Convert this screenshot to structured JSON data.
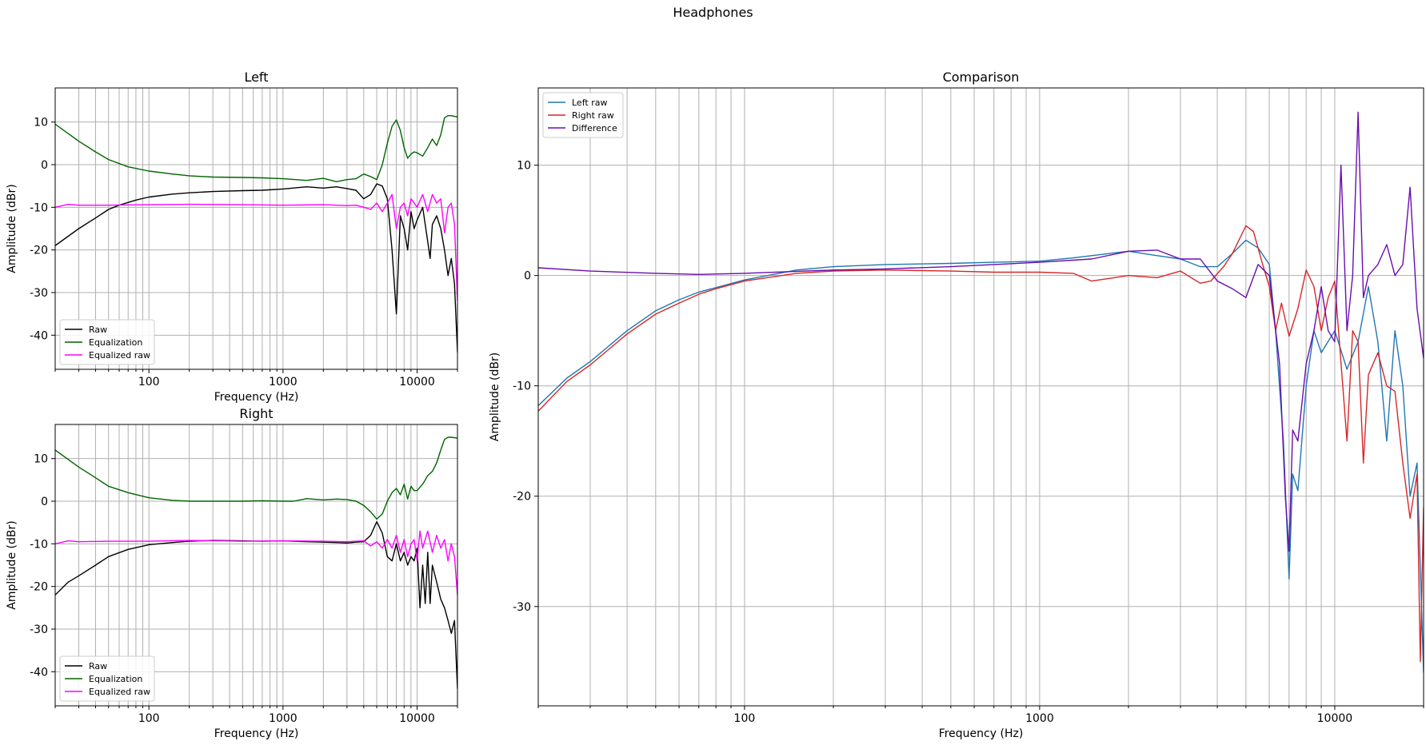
{
  "figure": {
    "title": "Headphones"
  },
  "colors": {
    "raw": "#000000",
    "equalization": "#006400",
    "equalized_raw": "#ff00ff",
    "left_raw": "#1f77b4",
    "right_raw": "#d62728",
    "difference": "#6a0dad",
    "grid": "#b0b0b0"
  },
  "chart_data": [
    {
      "id": "left",
      "type": "line",
      "title": "Left",
      "xlabel": "Frequency (Hz)",
      "ylabel": "Amplitude (dBr)",
      "xscale": "log",
      "xlim": [
        20,
        20000
      ],
      "ylim": [
        -48,
        18
      ],
      "xticks": [
        100,
        1000,
        10000
      ],
      "yticks": [
        -40,
        -30,
        -20,
        -10,
        0,
        10
      ],
      "grid": true,
      "legend": "lower-left",
      "series": [
        {
          "name": "Raw",
          "color": "#000000",
          "x": [
            20,
            30,
            40,
            50,
            60,
            80,
            100,
            150,
            200,
            300,
            500,
            700,
            1000,
            1500,
            2000,
            2500,
            3000,
            3500,
            4000,
            4500,
            5000,
            5500,
            6000,
            6500,
            7000,
            7500,
            8000,
            8500,
            9000,
            9500,
            10000,
            11000,
            12000,
            12500,
            13000,
            14000,
            15000,
            16000,
            17000,
            18000,
            19000,
            20000
          ],
          "values": [
            -19,
            -15,
            -12.5,
            -10.5,
            -9.5,
            -8.3,
            -7.6,
            -6.9,
            -6.6,
            -6.3,
            -6.1,
            -6.0,
            -5.7,
            -5.2,
            -5.5,
            -5.2,
            -5.6,
            -6,
            -8,
            -7,
            -4.5,
            -5,
            -8,
            -20,
            -35,
            -12,
            -15,
            -20,
            -11,
            -15,
            -13,
            -10,
            -18,
            -22,
            -14,
            -12,
            -15,
            -20,
            -26,
            -22,
            -28,
            -44
          ]
        },
        {
          "name": "Equalization",
          "color": "#006400",
          "x": [
            20,
            30,
            40,
            50,
            70,
            100,
            150,
            200,
            300,
            500,
            700,
            1000,
            1500,
            2000,
            2500,
            3000,
            3500,
            4000,
            4500,
            5000,
            5500,
            6000,
            6500,
            7000,
            7500,
            8000,
            8500,
            9000,
            9500,
            10000,
            11000,
            12000,
            13000,
            14000,
            15000,
            16000,
            17000,
            18000,
            20000
          ],
          "values": [
            9.5,
            5.5,
            3,
            1.2,
            -0.5,
            -1.5,
            -2.2,
            -2.6,
            -2.9,
            -3.0,
            -3.1,
            -3.3,
            -3.7,
            -3.2,
            -4.0,
            -3.5,
            -3.3,
            -2.2,
            -2.8,
            -3.5,
            0,
            5,
            9,
            10.5,
            8,
            4,
            1.5,
            2.5,
            3,
            2.8,
            2,
            4,
            6,
            4.5,
            7,
            11,
            11.5,
            11.5,
            11.2
          ]
        },
        {
          "name": "Equalized raw",
          "color": "#ff00ff",
          "x": [
            20,
            25,
            30,
            50,
            100,
            200,
            500,
            1000,
            2000,
            3000,
            3500,
            4000,
            4500,
            5000,
            5500,
            6000,
            6500,
            7000,
            7500,
            8000,
            8500,
            9000,
            9500,
            10000,
            11000,
            12000,
            13000,
            14000,
            15000,
            16000,
            17000,
            18000,
            19000,
            20000
          ],
          "values": [
            -10,
            -9.3,
            -9.5,
            -9.5,
            -9.4,
            -9.3,
            -9.4,
            -9.5,
            -9.4,
            -9.6,
            -9.5,
            -10,
            -10.5,
            -9.0,
            -11,
            -9,
            -7,
            -15,
            -10,
            -9,
            -12,
            -8,
            -9,
            -10,
            -7,
            -11,
            -7,
            -9,
            -8,
            -16,
            -10,
            -9,
            -14,
            -32
          ]
        }
      ]
    },
    {
      "id": "right",
      "type": "line",
      "title": "Right",
      "xlabel": "Frequency (Hz)",
      "ylabel": "Amplitude (dBr)",
      "xscale": "log",
      "xlim": [
        20,
        20000
      ],
      "ylim": [
        -48,
        18
      ],
      "xticks": [
        100,
        1000,
        10000
      ],
      "yticks": [
        -40,
        -30,
        -20,
        -10,
        0,
        10
      ],
      "grid": true,
      "legend": "lower-left",
      "series": [
        {
          "name": "Raw",
          "color": "#000000",
          "x": [
            20,
            25,
            30,
            40,
            50,
            70,
            100,
            150,
            200,
            300,
            500,
            700,
            1000,
            1500,
            2000,
            2500,
            3000,
            3500,
            4000,
            4500,
            5000,
            5500,
            6000,
            6500,
            7000,
            7500,
            8000,
            8500,
            9000,
            9500,
            10000,
            10500,
            11000,
            11500,
            12000,
            12500,
            13000,
            14000,
            15000,
            16000,
            17000,
            18000,
            19000,
            20000
          ],
          "values": [
            -22,
            -19,
            -17.5,
            -15,
            -13,
            -11.3,
            -10.2,
            -9.7,
            -9.4,
            -9.2,
            -9.3,
            -9.4,
            -9.3,
            -9.5,
            -9.6,
            -9.7,
            -9.8,
            -9.6,
            -9.5,
            -8.0,
            -4.8,
            -7.5,
            -13,
            -14,
            -10,
            -14,
            -12,
            -15,
            -13,
            -14,
            -11,
            -25,
            -15,
            -24,
            -12,
            -24,
            -15,
            -19,
            -23,
            -25,
            -28,
            -31,
            -28,
            -44
          ]
        },
        {
          "name": "Equalization",
          "color": "#006400",
          "x": [
            20,
            30,
            40,
            50,
            70,
            100,
            150,
            200,
            300,
            500,
            700,
            1000,
            1200,
            1500,
            2000,
            2500,
            3000,
            3500,
            4000,
            4500,
            5000,
            5500,
            6000,
            6500,
            7000,
            7500,
            8000,
            8500,
            9000,
            9500,
            10000,
            11000,
            12000,
            13000,
            14000,
            15000,
            16000,
            17000,
            18000,
            20000
          ],
          "values": [
            12,
            8,
            5.5,
            3.5,
            2,
            0.8,
            0.2,
            0,
            0,
            0,
            0.1,
            0,
            0,
            0.6,
            0.3,
            0.5,
            0.4,
            0,
            -1,
            -2.5,
            -4.2,
            -3,
            0,
            2,
            3,
            1.5,
            4,
            0.5,
            3.5,
            2.5,
            2.5,
            4,
            6,
            7,
            9,
            12,
            14.5,
            15,
            15,
            14.8
          ]
        },
        {
          "name": "Equalized raw",
          "color": "#ff00ff",
          "x": [
            20,
            25,
            30,
            50,
            100,
            200,
            500,
            1000,
            2000,
            3000,
            3500,
            4000,
            4500,
            5000,
            5500,
            6000,
            6500,
            7000,
            7500,
            8000,
            8500,
            9000,
            9500,
            10000,
            10500,
            11000,
            12000,
            13000,
            14000,
            15000,
            16000,
            17000,
            18000,
            19000,
            20000
          ],
          "values": [
            -10,
            -9.3,
            -9.5,
            -9.4,
            -9.4,
            -9.2,
            -9.4,
            -9.3,
            -9.4,
            -9.5,
            -9.4,
            -9.3,
            -10.5,
            -9.5,
            -11,
            -9,
            -11,
            -8,
            -12,
            -9,
            -13,
            -10,
            -9,
            -14,
            -7,
            -11,
            -7,
            -12,
            -8,
            -11,
            -9,
            -14,
            -10,
            -13,
            -22
          ]
        }
      ]
    },
    {
      "id": "comparison",
      "type": "line",
      "title": "Comparison",
      "xlabel": "Frequency (Hz)",
      "ylabel": "Amplitude (dBr)",
      "xscale": "log",
      "xlim": [
        20,
        20000
      ],
      "ylim": [
        -39,
        17
      ],
      "xticks": [
        100,
        1000,
        10000
      ],
      "yticks": [
        -30,
        -20,
        -10,
        0,
        10
      ],
      "grid": true,
      "legend": "upper-left",
      "series": [
        {
          "name": "Left raw",
          "color": "#1f77b4",
          "x": [
            20,
            25,
            30,
            40,
            50,
            60,
            70,
            80,
            100,
            150,
            200,
            300,
            500,
            700,
            1000,
            1300,
            1500,
            2000,
            2500,
            3000,
            3500,
            4000,
            4500,
            5000,
            5500,
            6000,
            6300,
            6700,
            7000,
            7200,
            7500,
            8000,
            8500,
            9000,
            10000,
            11000,
            12000,
            13000,
            14000,
            15000,
            16000,
            17000,
            18000,
            19000,
            20000
          ],
          "values": [
            -11.8,
            -9.3,
            -7.8,
            -5,
            -3.2,
            -2.2,
            -1.5,
            -1.1,
            -0.4,
            0.5,
            0.8,
            1.0,
            1.1,
            1.2,
            1.3,
            1.6,
            1.8,
            2.2,
            1.8,
            1.5,
            0.8,
            0.8,
            2,
            3.2,
            2.5,
            1,
            -5,
            -15,
            -27.5,
            -18,
            -19.5,
            -10,
            -5,
            -7,
            -5,
            -8.5,
            -6,
            -1,
            -6,
            -15,
            -5,
            -10,
            -20,
            -17,
            -36
          ]
        },
        {
          "name": "Right raw",
          "color": "#d62728",
          "x": [
            20,
            25,
            30,
            40,
            50,
            60,
            70,
            80,
            100,
            150,
            200,
            300,
            500,
            700,
            1000,
            1300,
            1500,
            2000,
            2500,
            3000,
            3500,
            3800,
            4200,
            4500,
            5000,
            5300,
            5700,
            6000,
            6300,
            6600,
            7000,
            7500,
            8000,
            8500,
            9000,
            9500,
            10000,
            11000,
            11500,
            12000,
            12500,
            13000,
            14000,
            15000,
            16000,
            17000,
            18000,
            19000,
            19500,
            20000
          ],
          "values": [
            -12.3,
            -9.6,
            -8.1,
            -5.3,
            -3.5,
            -2.5,
            -1.7,
            -1.2,
            -0.5,
            0.2,
            0.4,
            0.5,
            0.4,
            0.3,
            0.3,
            0.2,
            -0.5,
            0.0,
            -0.2,
            0.4,
            -0.7,
            -0.5,
            0.8,
            2,
            4.5,
            4,
            1,
            -1,
            -5,
            -2.5,
            -5.5,
            -3,
            0.5,
            -1,
            -5,
            -2,
            -0.5,
            -15,
            -5,
            -6,
            -17,
            -9,
            -7,
            -10,
            -10.5,
            -17,
            -22,
            -18,
            -35,
            -21
          ]
        },
        {
          "name": "Difference",
          "color": "#6a0dad",
          "x": [
            20,
            30,
            50,
            70,
            100,
            200,
            300,
            500,
            1000,
            1500,
            2000,
            2500,
            3000,
            3500,
            4000,
            4500,
            5000,
            5500,
            6000,
            6500,
            6800,
            7000,
            7200,
            7500,
            8000,
            8500,
            9000,
            9500,
            10000,
            10500,
            11000,
            11500,
            12000,
            12500,
            13000,
            14000,
            15000,
            16000,
            17000,
            18000,
            19000,
            20000
          ],
          "values": [
            0.7,
            0.4,
            0.2,
            0.1,
            0.2,
            0.5,
            0.6,
            0.8,
            1.2,
            1.5,
            2.2,
            2.3,
            1.5,
            1.5,
            -0.5,
            -1.2,
            -2,
            1,
            0,
            -8,
            -20,
            -25,
            -14,
            -15,
            -8,
            -5,
            -1,
            -5,
            -6,
            10,
            -5,
            0,
            14.8,
            -2,
            0,
            1,
            2.8,
            0,
            1,
            8,
            -3,
            -7.5
          ]
        }
      ]
    }
  ]
}
